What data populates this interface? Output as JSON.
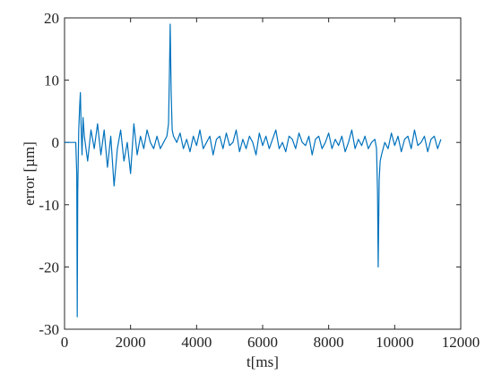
{
  "chart_data": {
    "type": "line",
    "xlabel": "t[ms]",
    "ylabel": "error [µm]",
    "xlim": [
      0,
      12000
    ],
    "xticks": [
      0,
      2000,
      4000,
      6000,
      8000,
      10000,
      12000
    ],
    "ylim": [
      -30,
      20
    ],
    "yticks": [
      -30,
      -20,
      -10,
      0,
      10,
      20
    ],
    "grid": false,
    "x": [
      0,
      100,
      200,
      300,
      340,
      370,
      385,
      400,
      430,
      460,
      480,
      500,
      530,
      560,
      600,
      700,
      800,
      900,
      1000,
      1100,
      1200,
      1300,
      1400,
      1500,
      1600,
      1700,
      1800,
      1900,
      2000,
      2100,
      2200,
      2300,
      2400,
      2500,
      2600,
      2700,
      2800,
      2900,
      3000,
      3100,
      3150,
      3180,
      3200,
      3230,
      3260,
      3300,
      3400,
      3500,
      3600,
      3700,
      3800,
      3900,
      4000,
      4100,
      4200,
      4300,
      4400,
      4500,
      4600,
      4700,
      4800,
      4900,
      5000,
      5100,
      5200,
      5300,
      5400,
      5500,
      5600,
      5700,
      5800,
      5900,
      6000,
      6100,
      6200,
      6300,
      6400,
      6500,
      6600,
      6700,
      6800,
      6900,
      7000,
      7100,
      7200,
      7300,
      7400,
      7500,
      7600,
      7700,
      7800,
      7900,
      8000,
      8100,
      8200,
      8300,
      8400,
      8500,
      8600,
      8700,
      8800,
      8900,
      9000,
      9100,
      9200,
      9300,
      9400,
      9450,
      9480,
      9500,
      9530,
      9560,
      9600,
      9700,
      9800,
      9900,
      10000,
      10100,
      10200,
      10300,
      10400,
      10500,
      10600,
      10700,
      10800,
      10900,
      11000,
      11100,
      11200,
      11300,
      11400
    ],
    "series": [
      {
        "name": "error",
        "color": "#0072bd",
        "values": [
          0,
          0,
          0,
          0,
          0,
          -5,
          -28,
          -8,
          2,
          6,
          8,
          3,
          -2,
          4,
          1,
          -3,
          2,
          -1,
          3,
          -2,
          2,
          -4,
          1,
          -7,
          -1,
          2,
          -3,
          0,
          -5,
          3,
          -2,
          1,
          -1,
          2,
          0,
          -1,
          1,
          -1,
          0,
          1,
          3,
          12,
          19,
          8,
          2,
          1,
          0,
          1.5,
          -1,
          0.5,
          -1.5,
          1,
          -0.5,
          2,
          -1,
          0,
          1,
          -2,
          0.5,
          1,
          -1,
          1.5,
          -0.5,
          0,
          2,
          -1.5,
          0.5,
          -1,
          1,
          0,
          -2,
          1.5,
          -0.5,
          1,
          -1,
          0.5,
          2,
          -1,
          0,
          -1.5,
          1,
          0.5,
          -1,
          1.5,
          0,
          -0.5,
          1,
          -2,
          0.5,
          1,
          -1,
          0,
          1.5,
          -1,
          0.5,
          -0.5,
          1,
          -1.5,
          0,
          2,
          -1,
          0.5,
          -0.5,
          1,
          -1,
          0,
          0.5,
          -1,
          -8,
          -20,
          -6,
          -3,
          -2,
          0,
          -1,
          1.5,
          -0.5,
          1,
          -1.5,
          0.5,
          1,
          -1,
          2,
          -0.5,
          0,
          1,
          -1.5,
          0.5,
          1,
          -1,
          0.5
        ]
      }
    ]
  }
}
